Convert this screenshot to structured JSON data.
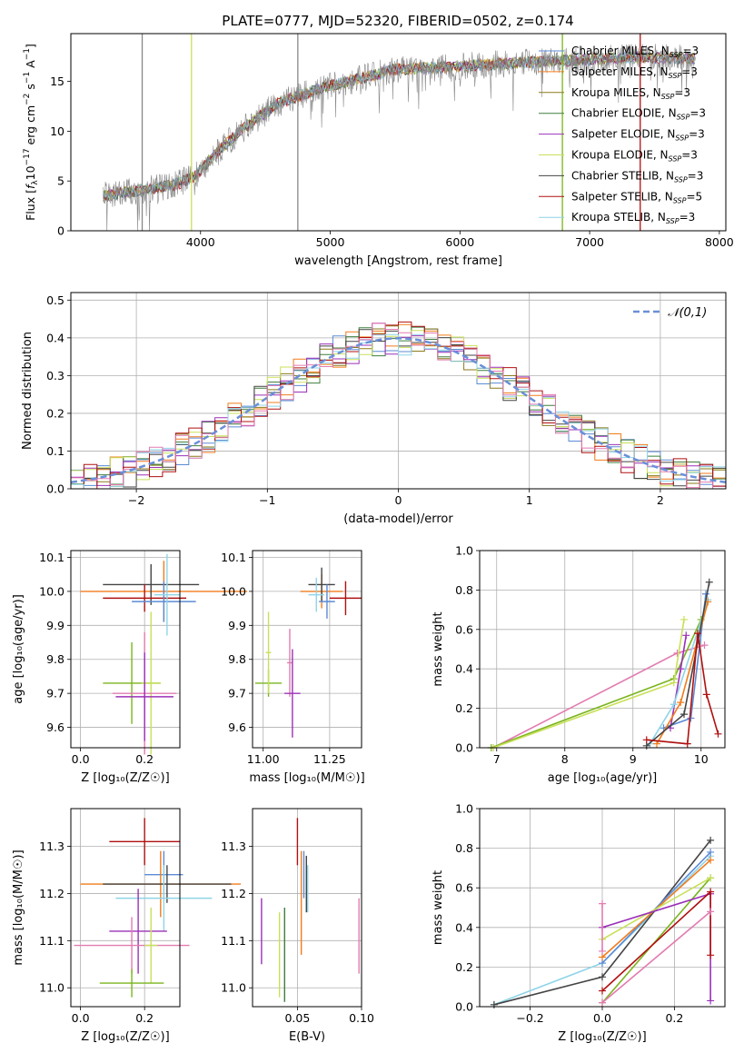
{
  "title": "PLATE=0777, MJD=52320, FIBERID=0502, z=0.174",
  "colors": {
    "Chabrier MILES": "#5b8bd5",
    "Salpeter MILES": "#f07c1c",
    "Kroupa MILES": "#8a7a1a",
    "Chabrier ELODIE": "#3f7f3f",
    "Salpeter ELODIE": "#9b30b8",
    "Kroupa ELODIE": "#c8e05a",
    "Chabrier STELIB": "#444444",
    "Salpeter STELIB": "#b01010",
    "Kroupa STELIB": "#8fd4e8",
    "Pink": "#e27bb0",
    "Green": "#7ab51e",
    "Data": "#888888"
  },
  "chart_data": [
    {
      "id": "spectrum",
      "type": "line",
      "xlabel": "wavelength [Angstrom, rest frame]",
      "ylabel_parts": [
        "Flux [",
        "f",
        "λ",
        "10",
        "−17",
        " erg cm",
        "−2",
        " s",
        "−1",
        " A",
        "−1",
        "]"
      ],
      "xlim": [
        3000,
        8050
      ],
      "ylim": [
        0,
        19.8
      ],
      "xticks": [
        4000,
        5000,
        6000,
        7000,
        8000
      ],
      "yticks": [
        0,
        5,
        10,
        15
      ],
      "legend": {
        "placement": "upper-right",
        "entries": [
          {
            "name": "Chabrier MILES, N",
            "sub": "SSP",
            "tail": "=3",
            "color": "#5b8bd5"
          },
          {
            "name": "Salpeter MILES, N",
            "sub": "SSP",
            "tail": "=3",
            "color": "#f07c1c"
          },
          {
            "name": "Kroupa MILES, N",
            "sub": "SSP",
            "tail": "=3",
            "color": "#8a7a1a"
          },
          {
            "name": "Chabrier ELODIE, N",
            "sub": "SSP",
            "tail": "=3",
            "color": "#3f7f3f"
          },
          {
            "name": "Salpeter ELODIE, N",
            "sub": "SSP",
            "tail": "=3",
            "color": "#9b30b8"
          },
          {
            "name": "Kroupa ELODIE, N",
            "sub": "SSP",
            "tail": "=3",
            "color": "#c8e05a"
          },
          {
            "name": "Chabrier STELIB, N",
            "sub": "SSP",
            "tail": "=3",
            "color": "#444444"
          },
          {
            "name": "Salpeter STELIB, N",
            "sub": "SSP",
            "tail": "=5",
            "color": "#b01010"
          },
          {
            "name": "Kroupa STELIB, N",
            "sub": "SSP",
            "tail": "=3",
            "color": "#8fd4e8"
          }
        ]
      },
      "continuum": [
        [
          3250,
          3.5
        ],
        [
          3500,
          4.0
        ],
        [
          3800,
          4.6
        ],
        [
          3950,
          5.4
        ],
        [
          4100,
          7.5
        ],
        [
          4300,
          10.0
        ],
        [
          4600,
          12.8
        ],
        [
          4900,
          14.2
        ],
        [
          5200,
          15.2
        ],
        [
          5500,
          16.2
        ],
        [
          6000,
          16.5
        ],
        [
          6500,
          16.9
        ],
        [
          7000,
          17.2
        ],
        [
          7400,
          17.4
        ],
        [
          7800,
          17.3
        ]
      ],
      "sky_lines": [
        {
          "x": 3550,
          "color": "#888888"
        },
        {
          "x": 3930,
          "color": "#c8e05a"
        },
        {
          "x": 4750,
          "color": "#888888"
        },
        {
          "x": 6790,
          "color": "#7ab51e"
        },
        {
          "x": 7390,
          "color": "#b01010"
        }
      ]
    },
    {
      "id": "residuals",
      "type": "step",
      "xlabel": "(data-model)/error",
      "ylabel": "Normed distribution",
      "xlim": [
        -2.5,
        2.5
      ],
      "ylim": [
        0,
        0.52
      ],
      "xticks": [
        -2,
        -1,
        0,
        1,
        2
      ],
      "yticks": [
        0.0,
        0.1,
        0.2,
        0.3,
        0.4,
        0.5
      ],
      "legend": {
        "placement": "upper-right",
        "label": "𝒩(0,1)",
        "color": "#6a8fd8"
      },
      "gaussian": {
        "mean": 0,
        "sigma": 1
      }
    },
    {
      "id": "age-vs-Z",
      "type": "errorbar",
      "xlabel": "Z [log₁₀(Z/Z☉)]",
      "ylabel": "age [log₁₀(age/yr)]",
      "xlim": [
        -0.03,
        0.31
      ],
      "ylim": [
        9.54,
        10.12
      ],
      "xticks": [
        0.0,
        0.2
      ],
      "yticks": [
        9.6,
        9.7,
        9.8,
        9.9,
        10.0,
        10.1
      ],
      "points": [
        {
          "x": 0.26,
          "y": 10.0,
          "xerr": 0.26,
          "yerr": 0.09,
          "color": "#f07c1c"
        },
        {
          "x": 0.22,
          "y": 10.02,
          "xerr": 0.15,
          "yerr": 0.06,
          "color": "#444444"
        },
        {
          "x": 0.2,
          "y": 9.98,
          "xerr": 0.13,
          "yerr": 0.04,
          "color": "#b01010"
        },
        {
          "x": 0.26,
          "y": 9.97,
          "xerr": 0.1,
          "yerr": 0.06,
          "color": "#5b8bd5"
        },
        {
          "x": 0.27,
          "y": 9.99,
          "xerr": 0.04,
          "yerr": 0.12,
          "color": "#8fd4e8"
        },
        {
          "x": 0.16,
          "y": 9.73,
          "xerr": 0.09,
          "yerr": 0.12,
          "color": "#7ab51e"
        },
        {
          "x": 0.22,
          "y": 9.73,
          "xerr": 0.03,
          "yerr": 0.21,
          "color": "#c8e05a"
        },
        {
          "x": 0.2,
          "y": 9.7,
          "xerr": 0.1,
          "yerr": 0.18,
          "color": "#e27bb0"
        },
        {
          "x": 0.2,
          "y": 9.69,
          "xerr": 0.09,
          "yerr": 0.13,
          "color": "#9b30b8"
        }
      ]
    },
    {
      "id": "age-vs-mass",
      "type": "errorbar",
      "xlabel": "mass [log₁₀(M/M☉)]",
      "ylabel": "",
      "xlim": [
        10.96,
        11.37
      ],
      "ylim": [
        9.54,
        10.12
      ],
      "xticks": [
        11.0,
        11.25
      ],
      "yticks": [
        9.6,
        9.7,
        9.8,
        9.9,
        10.0,
        10.1
      ],
      "points": [
        {
          "x": 11.22,
          "y": 10.0,
          "xerr": 0.08,
          "yerr": 0.05,
          "color": "#f07c1c"
        },
        {
          "x": 11.22,
          "y": 10.02,
          "xerr": 0.05,
          "yerr": 0.05,
          "color": "#444444"
        },
        {
          "x": 11.31,
          "y": 9.98,
          "xerr": 0.06,
          "yerr": 0.05,
          "color": "#b01010"
        },
        {
          "x": 11.24,
          "y": 9.97,
          "xerr": 0.03,
          "yerr": 0.05,
          "color": "#5b8bd5"
        },
        {
          "x": 11.2,
          "y": 9.99,
          "xerr": 0.03,
          "yerr": 0.05,
          "color": "#8fd4e8"
        },
        {
          "x": 11.02,
          "y": 9.73,
          "xerr": 0.05,
          "yerr": 0.04,
          "color": "#7ab51e"
        },
        {
          "x": 11.02,
          "y": 9.82,
          "xerr": 0.01,
          "yerr": 0.12,
          "color": "#c8e05a"
        },
        {
          "x": 11.1,
          "y": 9.79,
          "xerr": 0.01,
          "yerr": 0.1,
          "color": "#e27bb0"
        },
        {
          "x": 11.11,
          "y": 9.7,
          "xerr": 0.03,
          "yerr": 0.13,
          "color": "#9b30b8"
        }
      ]
    },
    {
      "id": "mass-weight-vs-age",
      "type": "line",
      "xlabel": "age [log₁₀(age/yr)]",
      "ylabel": "mass weight",
      "xlim": [
        6.75,
        10.35
      ],
      "ylim": [
        0,
        1.0
      ],
      "xticks": [
        7,
        8,
        9,
        10
      ],
      "yticks": [
        0.0,
        0.2,
        0.4,
        0.6,
        0.8,
        1.0
      ],
      "series": [
        {
          "color": "#e27bb0",
          "x": [
            6.95,
            9.65,
            10.05
          ],
          "y": [
            0.0,
            0.48,
            0.52
          ]
        },
        {
          "color": "#7ab51e",
          "x": [
            6.92,
            9.6,
            10.0
          ],
          "y": [
            0.0,
            0.35,
            0.65
          ]
        },
        {
          "color": "#c8e05a",
          "x": [
            6.95,
            9.6,
            9.75
          ],
          "y": [
            0.0,
            0.33,
            0.65
          ]
        },
        {
          "color": "#9b30b8",
          "x": [
            9.55,
            9.7,
            9.78
          ],
          "y": [
            0.1,
            0.4,
            0.57
          ]
        },
        {
          "color": "#5b8bd5",
          "x": [
            9.45,
            9.85,
            10.07
          ],
          "y": [
            0.1,
            0.15,
            0.78
          ]
        },
        {
          "color": "#8fd4e8",
          "x": [
            9.25,
            9.6,
            10.1
          ],
          "y": [
            0.02,
            0.22,
            0.75
          ]
        },
        {
          "color": "#f07c1c",
          "x": [
            9.35,
            9.7,
            10.1
          ],
          "y": [
            0.02,
            0.23,
            0.74
          ]
        },
        {
          "color": "#444444",
          "x": [
            9.2,
            9.75,
            10.12
          ],
          "y": [
            0.01,
            0.17,
            0.84
          ]
        },
        {
          "color": "#b01010",
          "x": [
            9.2,
            9.8,
            9.95,
            10.08,
            10.25
          ],
          "y": [
            0.04,
            0.02,
            0.58,
            0.27,
            0.07
          ]
        }
      ]
    },
    {
      "id": "mass-vs-Z",
      "type": "errorbar",
      "xlabel": "Z [log₁₀(Z/Z☉)]",
      "ylabel": "mass [log₁₀(M/M☉)]",
      "xlim": [
        -0.03,
        0.31
      ],
      "ylim": [
        10.96,
        11.38
      ],
      "xticks": [
        0.0,
        0.2
      ],
      "yticks": [
        11.0,
        11.1,
        11.2,
        11.3
      ],
      "points": [
        {
          "x": 0.2,
          "y": 11.31,
          "xerr": 0.11,
          "yerr": 0.05,
          "color": "#b01010"
        },
        {
          "x": 0.26,
          "y": 11.24,
          "xerr": 0.06,
          "yerr": 0.05,
          "color": "#5b8bd5"
        },
        {
          "x": 0.25,
          "y": 11.22,
          "xerr": 0.25,
          "yerr": 0.07,
          "color": "#f07c1c"
        },
        {
          "x": 0.27,
          "y": 11.22,
          "xerr": 0.2,
          "yerr": 0.04,
          "color": "#444444"
        },
        {
          "x": 0.26,
          "y": 11.19,
          "xerr": 0.15,
          "yerr": 0.07,
          "color": "#8fd4e8"
        },
        {
          "x": 0.18,
          "y": 11.12,
          "xerr": 0.09,
          "yerr": 0.09,
          "color": "#9b30b8"
        },
        {
          "x": 0.16,
          "y": 11.09,
          "xerr": 0.18,
          "yerr": 0.06,
          "color": "#e27bb0"
        },
        {
          "x": 0.22,
          "y": 11.09,
          "xerr": 0.02,
          "yerr": 0.08,
          "color": "#c8e05a"
        },
        {
          "x": 0.16,
          "y": 11.01,
          "xerr": 0.1,
          "yerr": 0.03,
          "color": "#7ab51e"
        }
      ]
    },
    {
      "id": "mass-vs-EBV",
      "type": "errorbar",
      "xlabel": "E(B-V)",
      "ylabel": "",
      "xlim": [
        0.015,
        0.1
      ],
      "ylim": [
        10.96,
        11.38
      ],
      "xticks": [
        0.05,
        0.1
      ],
      "yticks": [
        11.0,
        11.1,
        11.2,
        11.3
      ],
      "points": [
        {
          "x": 0.05,
          "y": 11.31,
          "yerr": 0.05,
          "color": "#b01010"
        },
        {
          "x": 0.055,
          "y": 11.24,
          "yerr": 0.05,
          "color": "#5b8bd5"
        },
        {
          "x": 0.053,
          "y": 11.18,
          "yerr": 0.11,
          "color": "#f07c1c"
        },
        {
          "x": 0.057,
          "y": 11.22,
          "yerr": 0.06,
          "color": "#444444"
        },
        {
          "x": 0.058,
          "y": 11.21,
          "yerr": 0.05,
          "color": "#8fd4e8"
        },
        {
          "x": 0.022,
          "y": 11.12,
          "yerr": 0.07,
          "color": "#9b30b8"
        },
        {
          "x": 0.098,
          "y": 11.11,
          "yerr": 0.08,
          "color": "#e27bb0"
        },
        {
          "x": 0.036,
          "y": 11.07,
          "yerr": 0.09,
          "color": "#c8e05a"
        },
        {
          "x": 0.04,
          "y": 11.07,
          "yerr": 0.1,
          "color": "#3f7f3f"
        }
      ]
    },
    {
      "id": "mass-weight-vs-Z",
      "type": "line",
      "xlabel": "Z [log₁₀(Z/Z☉)]",
      "ylabel": "mass weight",
      "xlim": [
        -0.34,
        0.34
      ],
      "ylim": [
        0,
        1.0
      ],
      "xticks": [
        -0.2,
        0.0,
        0.2
      ],
      "yticks": [
        0.0,
        0.2,
        0.4,
        0.6,
        0.8,
        1.0
      ],
      "series": [
        {
          "color": "#8fd4e8",
          "x": [
            -0.3,
            0.0,
            0.3
          ],
          "y": [
            0.01,
            0.22,
            0.76
          ]
        },
        {
          "color": "#444444",
          "x": [
            -0.3,
            0.0,
            0.3
          ],
          "y": [
            0.01,
            0.15,
            0.84
          ]
        },
        {
          "color": "#5b8bd5",
          "x": [
            0.0,
            0.3
          ],
          "y": [
            0.22,
            0.78
          ]
        },
        {
          "color": "#f07c1c",
          "x": [
            0.0,
            0.3
          ],
          "y": [
            0.25,
            0.74
          ]
        },
        {
          "color": "#7ab51e",
          "x": [
            0.0,
            0.3
          ],
          "y": [
            0.02,
            0.65
          ]
        },
        {
          "color": "#c8e05a",
          "x": [
            0.0,
            0.3
          ],
          "y": [
            0.34,
            0.65
          ]
        },
        {
          "color": "#9b30b8",
          "x": [
            0.0,
            0.3,
            0.3
          ],
          "y": [
            0.4,
            0.57,
            0.03
          ]
        },
        {
          "color": "#b01010",
          "x": [
            0.0,
            0.3,
            0.3
          ],
          "y": [
            0.08,
            0.58,
            0.26
          ]
        },
        {
          "color": "#e27bb0",
          "x": [
            0.0,
            0.3
          ],
          "y": [
            0.02,
            0.48
          ]
        },
        {
          "color": "#e27bb0",
          "x": [
            0.0,
            0.0
          ],
          "y": [
            0.52,
            0.28
          ]
        }
      ]
    }
  ]
}
